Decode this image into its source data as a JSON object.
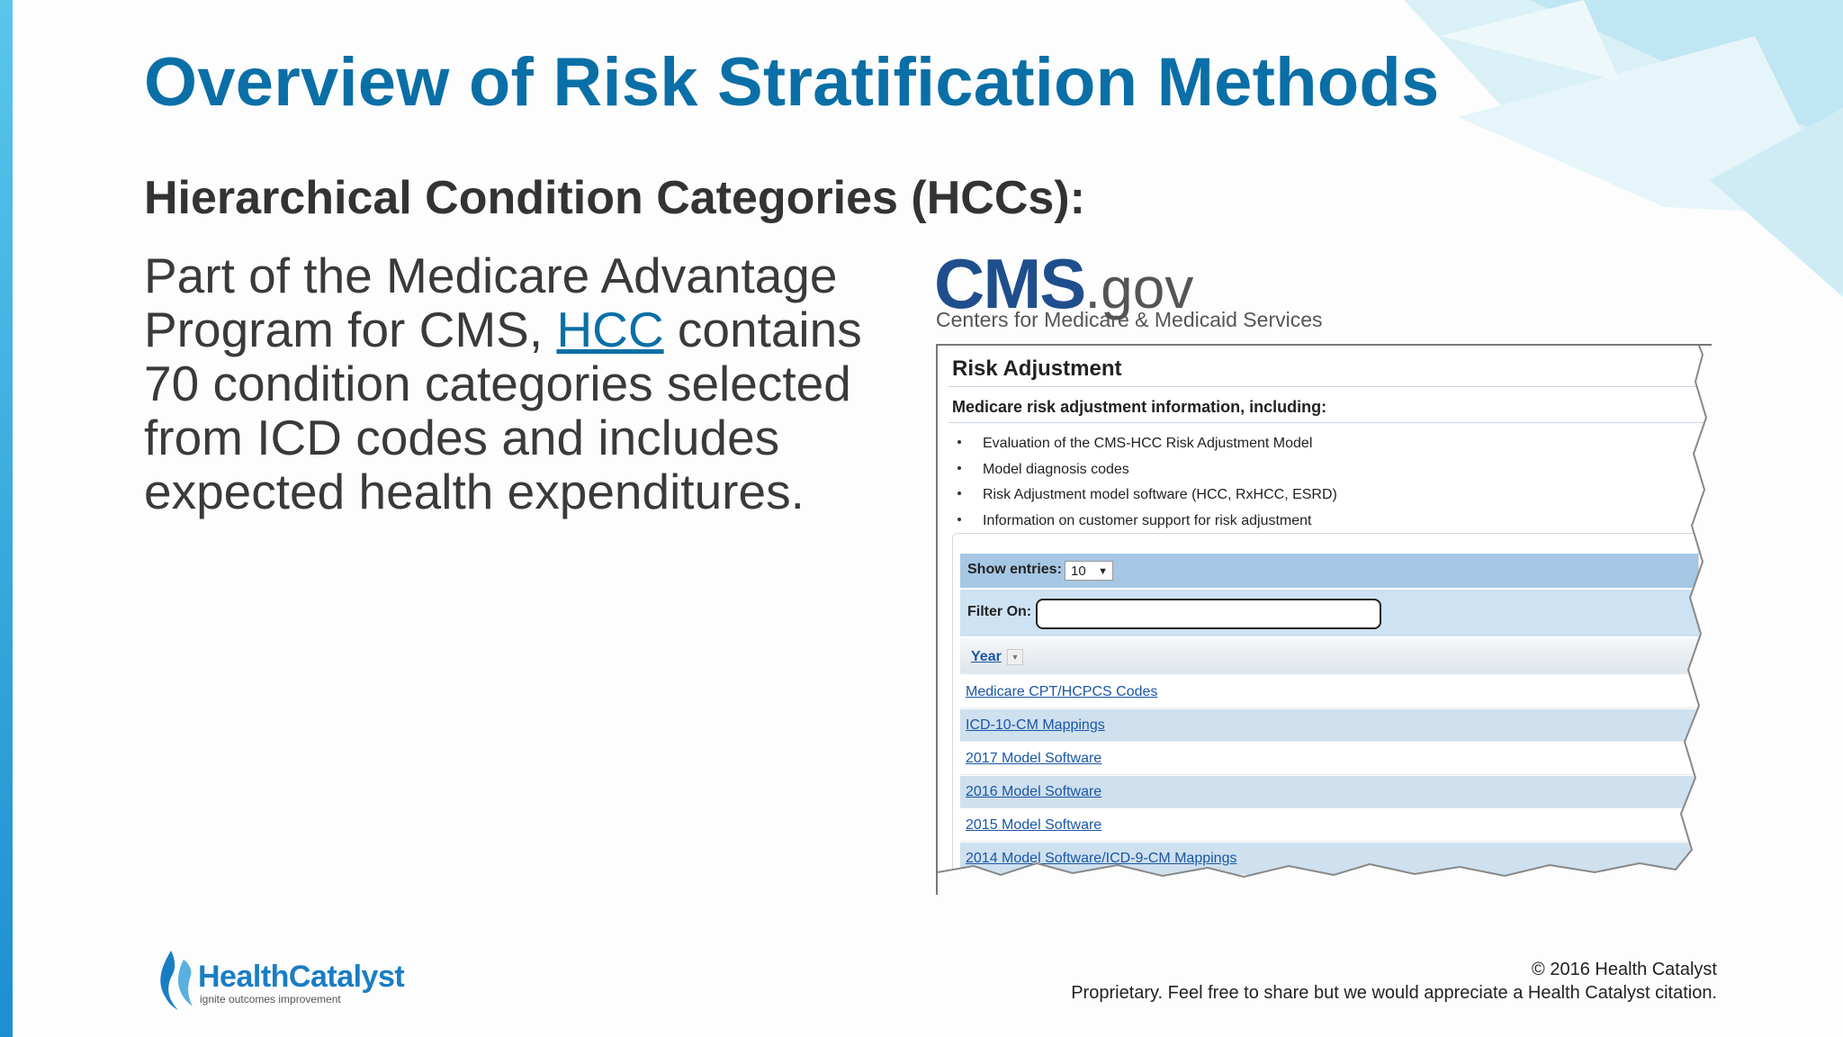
{
  "slide": {
    "title": "Overview of Risk Stratification Methods",
    "subtitle": "Hierarchical Condition Categories (HCCs):",
    "body_before": "Part of the Medicare Advantage Program for CMS, ",
    "body_link": "HCC",
    "body_after": " contains 70 condition categories selected from ICD codes and includes expected health expenditures."
  },
  "cms_logo": {
    "word": "CMS",
    "suffix": ".gov",
    "subtitle": "Centers for Medicare & Medicaid Services"
  },
  "risk_adjustment": {
    "title": "Risk Adjustment",
    "heading": "Medicare risk adjustment information, including:",
    "bullets": [
      "Evaluation of the CMS-HCC Risk Adjustment Model",
      "Model diagnosis codes",
      "Risk Adjustment model software (HCC, RxHCC, ESRD)",
      "Information on customer support for risk adjustment"
    ],
    "show_entries_label": "Show entries:",
    "show_entries_value": "10",
    "filter_label": "Filter On:",
    "filter_value": "",
    "year_label": "Year",
    "rows": [
      "Medicare CPT/HCPCS Codes",
      "ICD-10-CM Mappings",
      "2017 Model Software",
      "2016 Model Software",
      "2015 Model Software",
      "2014 Model Software/ICD-9-CM Mappings"
    ]
  },
  "footer": {
    "logo_text": "HealthCatalyst",
    "logo_tagline": "ignite outcomes improvement",
    "copyright": "© 2016 Health Catalyst",
    "notice": "Proprietary. Feel free to share but we would appreciate a Health Catalyst citation."
  },
  "colors": {
    "title": "#0a6fa6",
    "accent_bar": "#1c8fd0",
    "table_header": "#a6c7e3",
    "link": "#1a56a6"
  }
}
